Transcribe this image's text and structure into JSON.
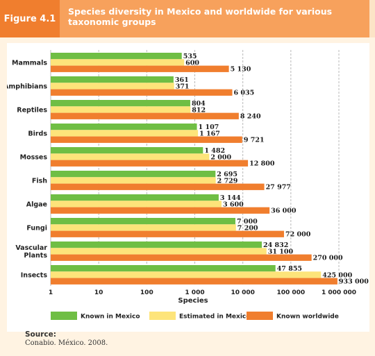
{
  "figure": {
    "label": "Figure 4.1",
    "title": "Species diversity in Mexico and worldwide for various taxonomic groups"
  },
  "colors": {
    "known_mexico": "#6fbe44",
    "estimated_mexico": "#fde47a",
    "known_worldwide": "#f07e2e",
    "header_dark": "#f07e2e",
    "header_light": "#f7a15c"
  },
  "chart_data": {
    "type": "bar",
    "orientation": "horizontal",
    "xscale": "log",
    "xlim": [
      1,
      1000000
    ],
    "xlabel": "Species",
    "ylabel": "",
    "grid": true,
    "legend_position": "bottom",
    "x_ticks": [
      "1",
      "10",
      "100",
      "1 000",
      "10 000",
      "100 000",
      "1 000 000"
    ],
    "x_tick_values": [
      1,
      10,
      100,
      1000,
      10000,
      100000,
      1000000
    ],
    "categories": [
      "Mammals",
      "Amphibians",
      "Reptiles",
      "Birds",
      "Mosses",
      "Fish",
      "Algae",
      "Fungi",
      "Vascular Plants",
      "Insects"
    ],
    "series": [
      {
        "name": "Known in Mexico",
        "values": [
          535,
          361,
          804,
          1107,
          1482,
          2695,
          3144,
          7000,
          24832,
          47855
        ],
        "labels": [
          "535",
          "361",
          "804",
          "1 107",
          "1 482",
          "2 695",
          "3 144",
          "7 000",
          "24 832",
          "47 855"
        ]
      },
      {
        "name": "Estimated in Mexico",
        "values": [
          600,
          371,
          812,
          1167,
          2000,
          2729,
          3600,
          7200,
          31100,
          425000
        ],
        "labels": [
          "600",
          "371",
          "812",
          "1 167",
          "2 000",
          "2 729",
          "3 600",
          "7 200",
          "31 100",
          "425 000"
        ]
      },
      {
        "name": "Known worldwide",
        "values": [
          5130,
          6035,
          8240,
          9721,
          12800,
          27977,
          36000,
          72000,
          270000,
          933000
        ],
        "labels": [
          "5 130",
          "6 035",
          "8 240",
          "9 721",
          "12 800",
          "27 977",
          "36 000",
          "72 000",
          "270 000",
          "933 000"
        ]
      }
    ]
  },
  "source": {
    "title": "Source:",
    "text": "Conabio. México. 2008."
  }
}
